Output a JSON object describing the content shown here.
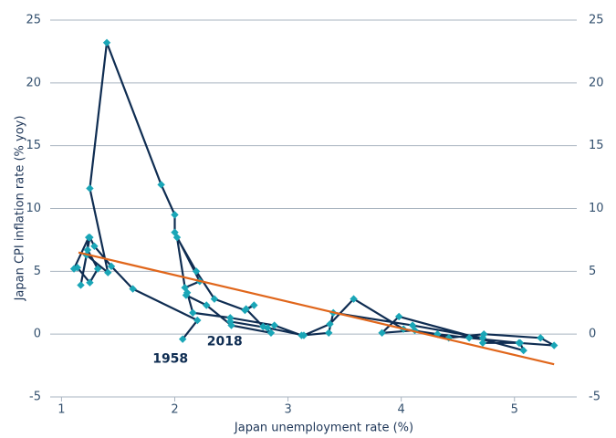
{
  "chart_data": {
    "type": "scatter",
    "xlabel": "Japan unemployment rate (%)",
    "ylabel": "Japan CPI inflation rate (% yoy)",
    "xlim": [
      0.9,
      5.55
    ],
    "xticks": [
      1,
      2,
      3,
      4,
      5
    ],
    "ylim": [
      -5,
      25
    ],
    "yticks": [
      -5,
      0,
      5,
      10,
      15,
      20,
      25
    ],
    "y2lim": [
      -5,
      25
    ],
    "y2ticks": [
      -5,
      0,
      5,
      10,
      15,
      20,
      25
    ],
    "grid": true,
    "annotations": [
      "1958",
      "2018"
    ],
    "series": [
      {
        "color": "#0f2d52",
        "marker_color": "#1aa6b7",
        "connected": true,
        "x": [
          2.07,
          2.2,
          1.63,
          1.44,
          1.29,
          1.25,
          1.17,
          1.23,
          1.32,
          1.25,
          1.14,
          1.11,
          1.24,
          1.22,
          1.41,
          1.25,
          1.4,
          1.88,
          2.0,
          2.0,
          2.22,
          2.09,
          2.02,
          2.19,
          2.35,
          2.62,
          2.7,
          2.63,
          2.78,
          2.85,
          2.5,
          2.28,
          2.1,
          2.11,
          2.16,
          2.49,
          2.88,
          3.12,
          3.36,
          3.4,
          4.1,
          4.72,
          4.72,
          5.04,
          5.35,
          5.23,
          4.73,
          4.42,
          4.12,
          3.83,
          3.98,
          5.08,
          5.05,
          4.6,
          4.32,
          4.02,
          3.58,
          3.37,
          3.14,
          2.82,
          2.49
        ],
        "values": [
          -0.4,
          1.1,
          3.6,
          5.4,
          7.0,
          7.7,
          3.9,
          6.7,
          5.2,
          4.1,
          5.3,
          5.2,
          7.7,
          6.3,
          4.9,
          11.6,
          23.2,
          11.9,
          9.5,
          8.1,
          4.2,
          3.7,
          7.7,
          5.0,
          2.8,
          1.9,
          2.3,
          2.0,
          0.6,
          0.1,
          0.7,
          2.3,
          3.1,
          3.3,
          1.7,
          1.3,
          0.7,
          -0.1,
          0.1,
          1.7,
          0.7,
          -0.3,
          -0.7,
          -0.7,
          -0.9,
          -0.3,
          0.0,
          -0.3,
          0.3,
          0.1,
          1.4,
          -1.3,
          -0.7,
          -0.3,
          0.0,
          0.4,
          2.8,
          0.8,
          -0.1,
          0.5,
          1.0
        ]
      },
      {
        "color": "#e0661b",
        "connected": true,
        "x": [
          1.15,
          5.35
        ],
        "values": [
          6.5,
          -2.4
        ]
      }
    ]
  }
}
